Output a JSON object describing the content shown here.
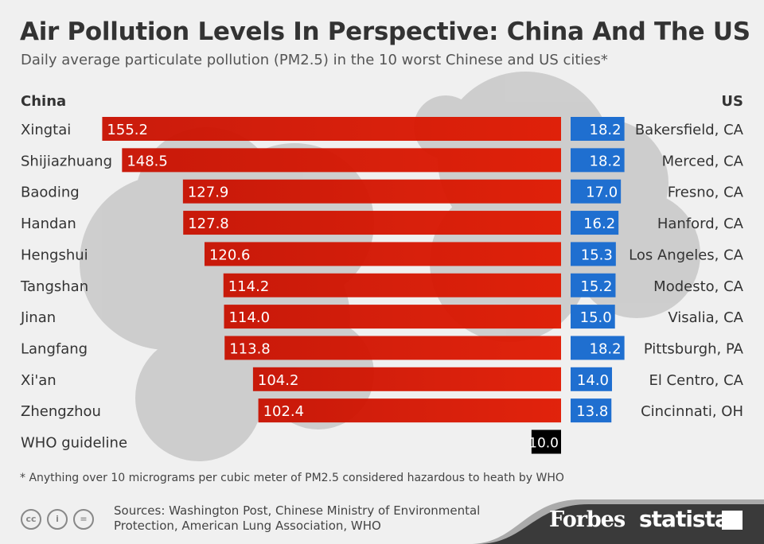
{
  "chart_data": {
    "type": "bar",
    "title": "Air Pollution Levels In Perspective: China And The US",
    "subtitle": "Daily average particulate pollution (PM2.5) in the 10 worst Chinese and US cities*",
    "left_header": "China",
    "right_header": "US",
    "china": {
      "categories": [
        "Xingtai",
        "Shijiazhuang",
        "Baoding",
        "Handan",
        "Hengshui",
        "Tangshan",
        "Jinan",
        "Langfang",
        "Xi'an",
        "Zhengzhou"
      ],
      "values": [
        155.2,
        148.5,
        127.9,
        127.8,
        120.6,
        114.2,
        114.0,
        113.8,
        104.2,
        102.4
      ],
      "color": "#d41400"
    },
    "us": {
      "categories": [
        "Bakersfield, CA",
        "Merced, CA",
        "Fresno, CA",
        "Hanford, CA",
        "Los Angeles, CA",
        "Modesto, CA",
        "Visalia, CA",
        "Pittsburgh, PA",
        "El Centro, CA",
        "Cincinnati, OH"
      ],
      "values": [
        18.2,
        18.2,
        17.0,
        16.2,
        15.3,
        15.2,
        15.0,
        18.2,
        14.0,
        13.8
      ],
      "color": "#1f6fd0"
    },
    "who": {
      "label": "WHO guideline",
      "value": 10.0,
      "value_label": "10.0",
      "color": "#000000"
    }
  },
  "footnote": "* Anything over 10 micrograms per cubic meter of PM2.5 considered hazardous to heath by WHO",
  "sources": "Sources: Washington Post, Chinese Ministry of Environmental Protection, American Lung Association, WHO",
  "license_icons": [
    "cc-icon",
    "by-icon",
    "nd-icon"
  ],
  "brands": {
    "forbes": "Forbes",
    "statista": "statista"
  }
}
